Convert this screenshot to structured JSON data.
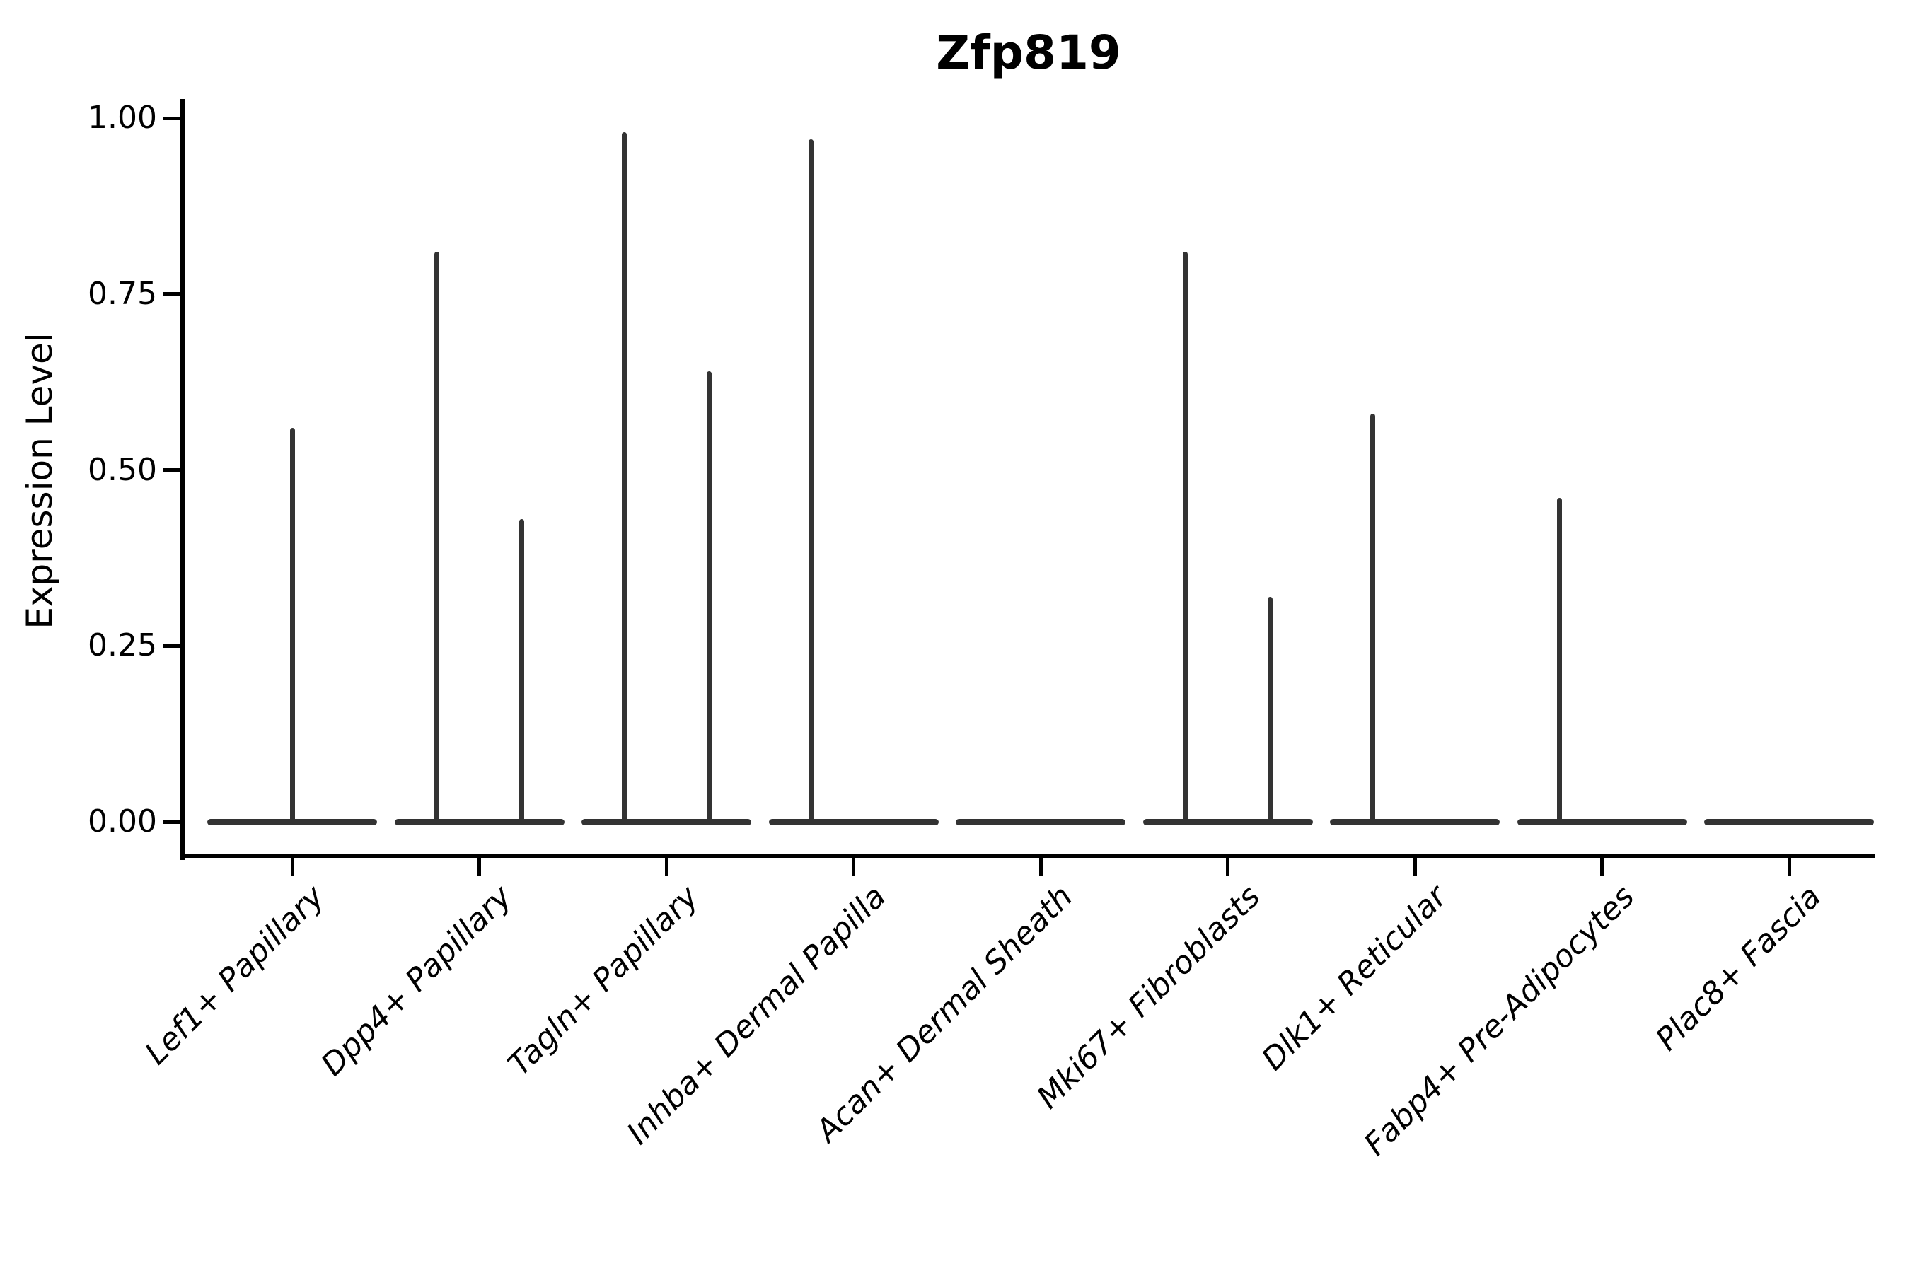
{
  "title": "Zfp819",
  "axes": {
    "ylabel": "Expression Level",
    "yticks": [
      {
        "label": "1.00",
        "value": 1.0
      },
      {
        "label": "0.75",
        "value": 0.75
      },
      {
        "label": "0.50",
        "value": 0.5
      },
      {
        "label": "0.25",
        "value": 0.25
      },
      {
        "label": "0.00",
        "value": 0.0
      }
    ]
  },
  "colors": {
    "violin": "#333333",
    "axis": "#000000",
    "background": "#ffffff"
  },
  "chart_data": {
    "type": "violin",
    "title": "Zfp819",
    "xlabel": "",
    "ylabel": "Expression Level",
    "ylim": [
      0,
      1
    ],
    "yticks": [
      0.0,
      0.25,
      0.5,
      0.75,
      1.0
    ],
    "grid": false,
    "legend": "none",
    "description": "Single-cell expression violin plot; each violin collapses to a flat base at 0 (most cells not expressing) with a thin central spike rising to the maximum expression value. Some categories contain two side-by-side violins.",
    "categories": [
      "Lef1+ Papillary",
      "Dpp4+ Papillary",
      "Tagln+ Papillary",
      "Inhba+ Dermal Papilla",
      "Acan+ Dermal Sheath",
      "Mki67+ Fibroblasts",
      "Dlk1+ Reticular",
      "Fabp4+ Pre-Adipocytes",
      "Plac8+ Fascia"
    ],
    "violins": [
      {
        "category": "Lef1+ Papillary",
        "spikes": [
          {
            "offset": 0,
            "max": 0.56
          }
        ]
      },
      {
        "category": "Dpp4+ Papillary",
        "spikes": [
          {
            "offset": -1,
            "max": 0.81
          },
          {
            "offset": 1,
            "max": 0.43
          }
        ]
      },
      {
        "category": "Tagln+ Papillary",
        "spikes": [
          {
            "offset": -1,
            "max": 0.98
          },
          {
            "offset": 1,
            "max": 0.64
          }
        ]
      },
      {
        "category": "Inhba+ Dermal Papilla",
        "spikes": [
          {
            "offset": -1,
            "max": 0.97
          }
        ]
      },
      {
        "category": "Acan+ Dermal Sheath",
        "spikes": []
      },
      {
        "category": "Mki67+ Fibroblasts",
        "spikes": [
          {
            "offset": -1,
            "max": 0.81
          },
          {
            "offset": 1,
            "max": 0.32
          }
        ]
      },
      {
        "category": "Dlk1+ Reticular",
        "spikes": [
          {
            "offset": -1,
            "max": 0.58
          }
        ]
      },
      {
        "category": "Fabp4+ Pre-Adipocytes",
        "spikes": [
          {
            "offset": -1,
            "max": 0.46
          }
        ]
      },
      {
        "category": "Plac8+ Fascia",
        "spikes": []
      }
    ]
  }
}
